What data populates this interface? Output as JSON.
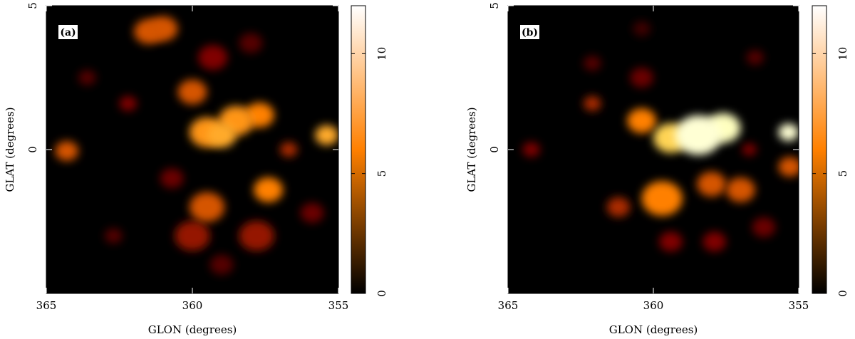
{
  "chart_data": [
    {
      "type": "heatmap",
      "label": "(a)",
      "xlabel": "GLON (degrees)",
      "ylabel": "GLAT (degrees)",
      "xlim": [
        365,
        355
      ],
      "ylim": [
        -5,
        5
      ],
      "xticks": [
        365,
        360,
        355
      ],
      "yticks": [
        0,
        5
      ],
      "colorbar_lim": [
        0,
        12
      ],
      "colorbar_ticks": [
        0,
        5,
        10
      ],
      "glon": [
        361.5,
        361.0,
        364.3,
        360.0,
        359.5,
        358.5,
        357.7,
        359.0,
        357.4,
        359.5,
        355.4,
        356.7,
        360.0,
        357.8,
        363.6,
        362.2,
        360.7,
        355.9,
        359.0,
        362.7,
        359.3,
        358.0
      ],
      "glat": [
        4.1,
        4.2,
        -0.05,
        2.0,
        0.6,
        1.0,
        1.2,
        0.5,
        -1.4,
        -2.0,
        0.5,
        0.0,
        -3.0,
        -3.0,
        2.5,
        1.6,
        -1.0,
        -2.2,
        -4.0,
        -3.0,
        3.2,
        3.7
      ],
      "values": [
        5,
        5,
        5,
        5,
        6.5,
        6.5,
        6,
        7,
        6,
        5,
        7,
        4,
        3.5,
        3.5,
        2,
        3,
        2.5,
        2.5,
        2,
        2,
        3,
        2
      ],
      "size": [
        0.5,
        0.5,
        0.4,
        0.5,
        0.6,
        0.6,
        0.5,
        0.5,
        0.5,
        0.6,
        0.4,
        0.3,
        0.6,
        0.6,
        0.3,
        0.3,
        0.4,
        0.4,
        0.4,
        0.3,
        0.5,
        0.4
      ]
    },
    {
      "type": "heatmap",
      "label": "(b)",
      "xlabel": "GLON (degrees)",
      "ylabel": "GLAT (degrees)",
      "xlim": [
        365,
        355
      ],
      "ylim": [
        -5,
        5
      ],
      "xticks": [
        365,
        360,
        355
      ],
      "yticks": [
        0,
        5
      ],
      "colorbar_lim": [
        0,
        12
      ],
      "colorbar_ticks": [
        0,
        5,
        10
      ],
      "glon": [
        358.45,
        357.6,
        359.4,
        360.4,
        355.35,
        359.7,
        358.0,
        357.0,
        355.3,
        361.2,
        362.1,
        364.2,
        356.7,
        360.4,
        359.4,
        357.9,
        356.2,
        362.1,
        356.5,
        360.4
      ],
      "glat": [
        0.5,
        0.75,
        0.4,
        1.0,
        0.6,
        -1.7,
        -1.2,
        -1.4,
        -0.6,
        -2.0,
        1.6,
        0.0,
        0.0,
        2.5,
        -3.2,
        -3.2,
        -2.7,
        3.0,
        3.2,
        4.2
      ],
      "values": [
        11,
        10.5,
        8,
        6,
        11,
        6,
        5,
        5,
        5,
        4,
        4,
        3,
        3,
        2.5,
        3,
        3,
        2.5,
        2,
        2,
        1.5
      ],
      "size": [
        0.8,
        0.6,
        0.6,
        0.5,
        0.35,
        0.7,
        0.5,
        0.5,
        0.4,
        0.4,
        0.3,
        0.3,
        0.25,
        0.4,
        0.4,
        0.4,
        0.4,
        0.3,
        0.3,
        0.3
      ]
    }
  ]
}
